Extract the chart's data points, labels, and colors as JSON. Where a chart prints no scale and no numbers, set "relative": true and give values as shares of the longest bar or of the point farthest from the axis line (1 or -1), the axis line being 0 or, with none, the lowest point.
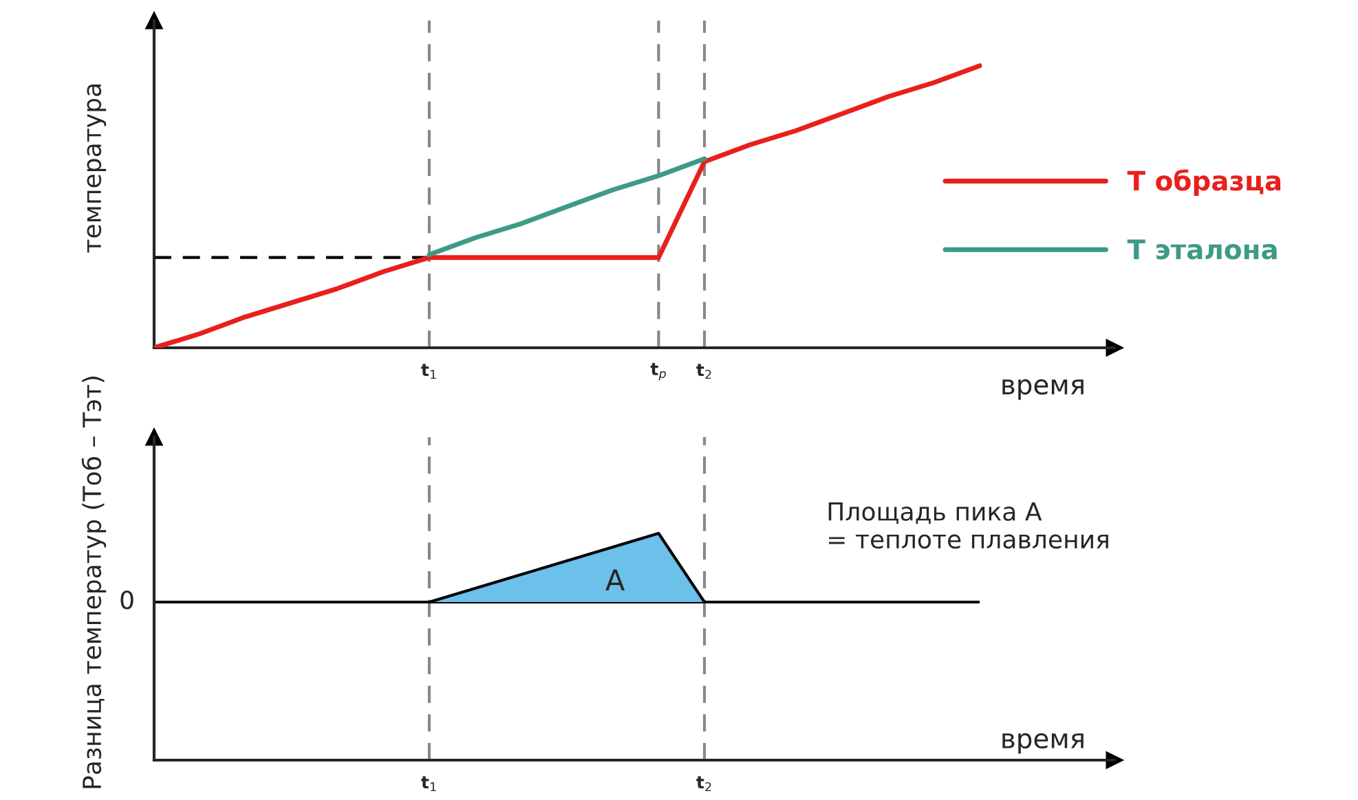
{
  "chart_data": [
    {
      "type": "line",
      "relative": true,
      "ylabel": "температура",
      "xlabel": "время",
      "categories": [
        null,
        null,
        null,
        null,
        null,
        null,
        "t$_{1}$",
        null,
        null,
        null,
        null,
        "t$_{p}$",
        "t$_{2}$",
        null,
        null,
        null,
        null,
        null,
        null
      ],
      "series": [
        {
          "name": "Т образца",
          "color": "#e8201c",
          "values": [
            0,
            0.05,
            0.11,
            0.16,
            0.21,
            0.27,
            0.32,
            0.32,
            0.32,
            0.32,
            0.32,
            0.32,
            0.66,
            0.72,
            0.77,
            0.83,
            0.89,
            0.94,
            1
          ]
        },
        {
          "name": "Т эталона",
          "color": "#3e9a86",
          "values": [
            null,
            null,
            null,
            null,
            null,
            null,
            0.33,
            0.39,
            0.44,
            0.5,
            0.56,
            0.61,
            0.67,
            null,
            null,
            null,
            null,
            null,
            null
          ]
        }
      ],
      "ref_lines": [
        {
          "axis": "y",
          "value": 0.32,
          "color": "#000000",
          "line_style": "dashed"
        }
      ],
      "legend": "right",
      "grid": "x"
    },
    {
      "type": "area",
      "relative": true,
      "ylabel": "Разница температур (Тоб – Тэт)",
      "xlabel": "время",
      "categories": [
        null,
        null,
        null,
        null,
        null,
        null,
        "t$_{1}$",
        null,
        null,
        null,
        null,
        null,
        "t$_{2}$",
        null,
        null,
        null,
        null,
        null,
        null
      ],
      "series": [
        {
          "color": "#6cc0ea",
          "values": [
            null,
            null,
            null,
            null,
            null,
            null,
            0,
            0.2,
            0.4,
            0.6,
            0.8,
            1,
            0,
            null,
            null,
            null,
            null,
            null,
            null
          ]
        }
      ],
      "ref_lines": [
        {
          "axis": "y",
          "value": 0,
          "label": "0",
          "color": "#000000",
          "line_style": "solid"
        }
      ],
      "annotations": [
        "A",
        "Площадь пика А\n= теплоте плавления"
      ],
      "grid": "x"
    }
  ]
}
